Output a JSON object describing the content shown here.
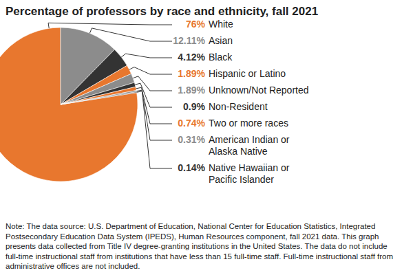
{
  "chart_data": {
    "type": "pie",
    "title": "Percentage of professors by race and ethnicity, fall 2021",
    "categories": [
      "White",
      "Asian",
      "Black",
      "Hispanic or Latino",
      "Unknown/Not Reported",
      "Non-Resident",
      "Two or more races",
      "American Indian or Alaska Native",
      "Native Hawaiian or Pacific Islander"
    ],
    "values": [
      76,
      12.11,
      4.12,
      1.89,
      1.89,
      0.9,
      0.74,
      0.31,
      0.14
    ],
    "value_labels": [
      "76%",
      "12.11%",
      "4.12%",
      "1.89%",
      "1.89%",
      "0.9%",
      "0.74%",
      "0.31%",
      "0.14%"
    ],
    "colors": [
      "#e8772e",
      "#8c8c8c",
      "#333333",
      "#e8772e",
      "#8c8c8c",
      "#333333",
      "#e8772e",
      "#8c8c8c",
      "#333333"
    ],
    "data_labels": true,
    "note": "Note: The data source: U.S. Department of Education, National Center for Education Statistics, Integrated Postsecondary Education Data System (IPEDS), Human Resources component, fall 2021 data. This graph presents data collected from Title IV degree-granting institutions in the United States. The data do not include full-time instructional staff from institutions that have less than 15 full-time staff. Full-time instructional staff from administrative offices are not included."
  }
}
